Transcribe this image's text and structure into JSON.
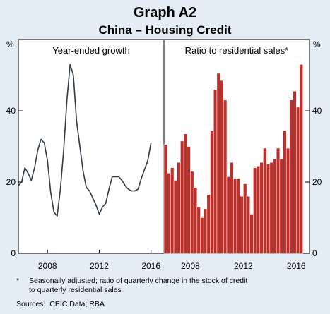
{
  "title": "Graph A2",
  "subtitle": "China – Housing Credit",
  "y_unit_left": "%",
  "y_unit_right": "%",
  "footnote_marker": "*",
  "footnote_line1": "Seasonally adjusted; ratio of quarterly change in the stock of credit",
  "footnote_line2": "to quarterly residential sales",
  "sources": "Sources:  CEIC Data; RBA",
  "chart_data": [
    {
      "type": "line",
      "title": "Year-ended growth",
      "xlabel": "",
      "ylabel": "%",
      "xlim": [
        2005.75,
        2017.0
      ],
      "ylim": [
        0,
        60
      ],
      "xticks": [
        2008,
        2012,
        2016
      ],
      "xtick_labels": [
        "2008",
        "2012",
        "2016"
      ],
      "yticks": [
        0,
        20,
        40
      ],
      "ytick_labels": [
        "0",
        "20",
        "40"
      ],
      "grid": false,
      "color": "#2f3b45",
      "x": [
        2005.75,
        2006.0,
        2006.25,
        2006.5,
        2006.75,
        2007.0,
        2007.25,
        2007.5,
        2007.75,
        2008.0,
        2008.25,
        2008.5,
        2008.75,
        2009.0,
        2009.25,
        2009.5,
        2009.75,
        2010.0,
        2010.25,
        2010.5,
        2010.75,
        2011.0,
        2011.25,
        2011.5,
        2011.75,
        2012.0,
        2012.25,
        2012.5,
        2012.75,
        2013.0,
        2013.25,
        2013.5,
        2013.75,
        2014.0,
        2014.25,
        2014.5,
        2014.75,
        2015.0,
        2015.25,
        2015.5,
        2015.75,
        2016.0
      ],
      "y": [
        19,
        20,
        24,
        22.5,
        20.5,
        24,
        29,
        32,
        31,
        26,
        17,
        11.5,
        10.5,
        18,
        29,
        43,
        53,
        50,
        37,
        30,
        23,
        18.5,
        17.5,
        15.5,
        13.5,
        11,
        13,
        14,
        18,
        21.5,
        21.5,
        21.5,
        20.5,
        19,
        18,
        17.5,
        17.5,
        18,
        21,
        23.5,
        26,
        31
      ]
    },
    {
      "type": "bar",
      "title": "Ratio to residential sales*",
      "xlabel": "",
      "ylabel": "%",
      "xlim": [
        2006.0,
        2017.0
      ],
      "ylim": [
        0,
        60
      ],
      "xticks": [
        2008,
        2012,
        2016
      ],
      "xtick_labels": [
        "2008",
        "2012",
        "2016"
      ],
      "yticks": [
        0,
        20,
        40
      ],
      "ytick_labels": [
        "0",
        "20",
        "40"
      ],
      "grid": false,
      "color": "#bf2f2a",
      "x": [
        2006.0,
        2006.25,
        2006.5,
        2006.75,
        2007.0,
        2007.25,
        2007.5,
        2007.75,
        2008.0,
        2008.25,
        2008.5,
        2008.75,
        2009.0,
        2009.25,
        2009.5,
        2009.75,
        2010.0,
        2010.25,
        2010.5,
        2010.75,
        2011.0,
        2011.25,
        2011.5,
        2011.75,
        2012.0,
        2012.25,
        2012.5,
        2012.75,
        2013.0,
        2013.25,
        2013.5,
        2013.75,
        2014.0,
        2014.25,
        2014.5,
        2014.75,
        2015.0,
        2015.25,
        2015.5,
        2015.75,
        2016.0,
        2016.25
      ],
      "values": [
        30.5,
        22.5,
        24,
        20.5,
        25.5,
        31.5,
        33.5,
        30,
        23,
        18.5,
        13,
        10,
        12.5,
        16.5,
        34.5,
        46,
        50.5,
        48.5,
        43,
        21.5,
        25.5,
        21,
        21,
        16,
        19.5,
        16,
        11,
        24,
        24.5,
        25.5,
        29.5,
        25,
        25.5,
        26.5,
        29.5,
        26.5,
        34.5,
        29.5,
        43,
        45.5,
        41,
        53
      ]
    }
  ]
}
